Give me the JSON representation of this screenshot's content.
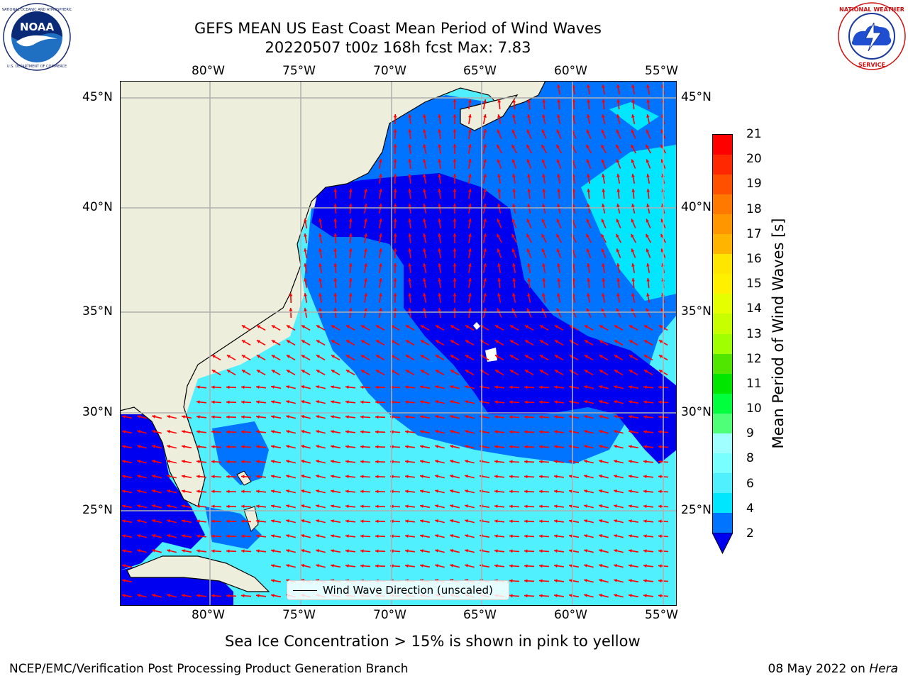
{
  "title": {
    "line1": "GEFS MEAN US East Coast Mean Period of Wind Waves",
    "line2": "20220507 t00z 168h fcst   Max: 7.83"
  },
  "map": {
    "longitude_labels": [
      "80°W",
      "75°W",
      "70°W",
      "65°W",
      "60°W",
      "55°W"
    ],
    "latitude_labels": [
      "45°N",
      "40°N",
      "35°N",
      "30°N",
      "25°N"
    ],
    "colors": {
      "land": "#eeeedc",
      "ocean_2": "#0000f0",
      "ocean_2_4": "#0073ff",
      "ocean_4_6": "#00e6ff",
      "ocean_6_8": "#50f0ff",
      "arrows": "#ff0000",
      "gridlines": "#b0b0b0",
      "coastline": "#000000"
    }
  },
  "legend": {
    "label": "Wind Wave Direction (unscaled)"
  },
  "colorbar": {
    "label": "Mean Period of Wind Waves [s]",
    "ticks": [
      "21",
      "20",
      "19",
      "18",
      "17",
      "16",
      "15",
      "14",
      "13",
      "12",
      "11",
      "10",
      "9",
      "8",
      "6",
      "4",
      "2"
    ],
    "segment_colors": [
      "#ff0000",
      "#ff2800",
      "#ff5000",
      "#ff7800",
      "#ff9600",
      "#ffb400",
      "#ffe600",
      "#fff000",
      "#e6ff00",
      "#c8ff00",
      "#a0ff00",
      "#50e600",
      "#00e600",
      "#00ff3c",
      "#50ff78",
      "#a0ffff",
      "#78ffff",
      "#50f0ff",
      "#00e6ff",
      "#0073ff"
    ]
  },
  "subtitle": "Sea Ice Concentration > 15% is shown in pink to yellow",
  "footer": {
    "left": "NCEP/EMC/Verification Post Processing Product Generation Branch",
    "date": "08 May 2022 on ",
    "host": "Hera"
  },
  "logos": {
    "left": {
      "icon": "noaa-logo",
      "text": "NOAA",
      "ring_text": "NATIONAL OCEANIC AND ATMOSPHERIC ADMINISTRATION · U.S. DEPARTMENT OF COMMERCE"
    },
    "right": {
      "icon": "nws-logo",
      "ring_text": "NATIONAL WEATHER SERVICE"
    }
  }
}
